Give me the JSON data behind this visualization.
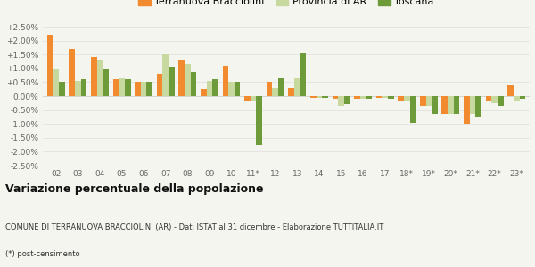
{
  "categories": [
    "02",
    "03",
    "04",
    "05",
    "06",
    "07",
    "08",
    "09",
    "10",
    "11*",
    "12",
    "13",
    "14",
    "15",
    "16",
    "17",
    "18*",
    "19*",
    "20*",
    "21*",
    "22*",
    "23*"
  ],
  "terranuova": [
    2.2,
    1.7,
    1.4,
    0.6,
    0.5,
    0.8,
    1.3,
    0.25,
    1.1,
    -0.2,
    0.5,
    0.3,
    -0.05,
    -0.1,
    -0.1,
    -0.05,
    -0.15,
    -0.35,
    -0.65,
    -1.0,
    -0.2,
    0.4
  ],
  "provincia": [
    1.0,
    0.55,
    1.3,
    0.65,
    0.5,
    1.5,
    1.15,
    0.55,
    0.5,
    -0.15,
    0.3,
    0.65,
    -0.05,
    -0.35,
    -0.1,
    -0.05,
    -0.2,
    -0.35,
    -0.65,
    -0.65,
    -0.25,
    -0.15
  ],
  "toscana": [
    0.5,
    0.6,
    0.95,
    0.6,
    0.5,
    1.05,
    0.85,
    0.6,
    0.5,
    -1.75,
    0.65,
    1.55,
    -0.05,
    -0.3,
    -0.1,
    -0.1,
    -0.95,
    -0.65,
    -0.65,
    -0.75,
    -0.35,
    -0.1
  ],
  "color_terranuova": "#f28a30",
  "color_provincia": "#c8d9a0",
  "color_toscana": "#6d9b3a",
  "title": "Variazione percentuale della popolazione",
  "subtitle": "COMUNE DI TERRANUOVA BRACCIOLINI (AR) - Dati ISTAT al 31 dicembre - Elaborazione TUTTITALIA.IT",
  "footnote": "(*) post-censimento",
  "ylim": [
    -2.5,
    2.5
  ],
  "yticks": [
    -2.5,
    -2.0,
    -1.5,
    -1.0,
    -0.5,
    0.0,
    0.5,
    1.0,
    1.5,
    2.0,
    2.5
  ],
  "background_color": "#f5f5ef",
  "legend_labels": [
    "Terranuova Bracciolini",
    "Provincia di AR",
    "Toscana"
  ]
}
